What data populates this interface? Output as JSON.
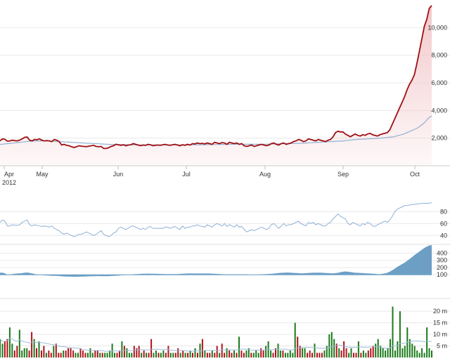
{
  "colors": {
    "price_line": "#9e0f14",
    "price_fill": "#f2c6c8",
    "moving_avg": "#8fb0d4",
    "indicator_line": "#8fb0d4",
    "oscillator_fill": "#6d9fc5",
    "volume_up": "#1b7a1b",
    "volume_down": "#b0121b",
    "volume_avg": "#9cbbd8",
    "grid": "#e9e9e9"
  },
  "chart_data": [
    {
      "type": "area",
      "x_ticks": [
        "Apr",
        "May",
        "Jun",
        "Jul",
        "Aug",
        "Sep",
        "Oct"
      ],
      "year_label": "2012",
      "y_ticks": [
        "2,000",
        "4,000",
        "6,000",
        "8,000",
        "10,000"
      ],
      "ylim": [
        0,
        11800
      ],
      "grid": true,
      "series": [
        {
          "values": [
            1800,
            1950,
            1920,
            1780,
            1800,
            1850,
            1820,
            1800,
            1860,
            1950,
            2060,
            2080,
            1850,
            1800,
            1900,
            1880,
            1950,
            1850,
            1800,
            1820,
            1800,
            1750,
            1900,
            1850,
            1750,
            1500,
            1550,
            1480,
            1450,
            1380,
            1320,
            1380,
            1450,
            1420,
            1400,
            1380,
            1420,
            1450,
            1480,
            1400,
            1380,
            1400,
            1250,
            1250,
            1300,
            1400,
            1450,
            1550,
            1520,
            1480,
            1520,
            1450,
            1500,
            1520,
            1600,
            1550,
            1500,
            1450,
            1500,
            1480,
            1550,
            1520,
            1450,
            1480,
            1500,
            1480,
            1520,
            1550,
            1500,
            1480,
            1520,
            1550,
            1500,
            1450,
            1520,
            1480,
            1550,
            1500,
            1600,
            1580,
            1650,
            1600,
            1620,
            1580,
            1650,
            1600,
            1550,
            1700,
            1650,
            1600,
            1680,
            1650,
            1550,
            1700,
            1650,
            1600,
            1650,
            1550,
            1600,
            1450,
            1400,
            1450,
            1500,
            1400,
            1450,
            1500,
            1550,
            1500,
            1450,
            1500,
            1600,
            1650,
            1550,
            1500,
            1600,
            1650,
            1550,
            1600,
            1650,
            1750,
            1800,
            1900,
            1850,
            1750,
            1800,
            1950,
            1900,
            1850,
            1800,
            1900,
            1850,
            1800,
            1750,
            1850,
            1900,
            2100,
            2400,
            2500,
            2450,
            2450,
            2300,
            2200,
            2100,
            2200,
            2300,
            2200,
            2150,
            2250,
            2200,
            2300,
            2350,
            2250,
            2200,
            2150,
            2250,
            2300,
            2350,
            2400,
            2600,
            3000,
            3400,
            3800,
            4200,
            4600,
            5000,
            5500,
            5900,
            6200,
            6600,
            7400,
            8300,
            9200,
            10100,
            10600,
            11400,
            11600
          ]
        },
        {
          "values": [
            1550,
            1560,
            1580,
            1600,
            1620,
            1640,
            1660,
            1680,
            1700,
            1720,
            1740,
            1760,
            1770,
            1780,
            1790,
            1800,
            1805,
            1800,
            1795,
            1790,
            1780,
            1770,
            1760,
            1750,
            1740,
            1730,
            1720,
            1710,
            1700,
            1690,
            1680,
            1670,
            1660,
            1650,
            1640,
            1630,
            1620,
            1610,
            1600,
            1590,
            1580,
            1570,
            1560,
            1550,
            1545,
            1540,
            1535,
            1530,
            1528,
            1525,
            1522,
            1520,
            1518,
            1515,
            1513,
            1510,
            1510,
            1510,
            1510,
            1510,
            1510,
            1510,
            1510,
            1510,
            1510,
            1510,
            1510,
            1510,
            1510,
            1510,
            1510,
            1510,
            1510,
            1510,
            1510,
            1512,
            1515,
            1518,
            1520,
            1522,
            1525,
            1528,
            1530,
            1533,
            1535,
            1538,
            1540,
            1543,
            1545,
            1548,
            1550,
            1552,
            1555,
            1555,
            1555,
            1555,
            1555,
            1555,
            1555,
            1555,
            1555,
            1555,
            1555,
            1555,
            1558,
            1560,
            1565,
            1570,
            1575,
            1580,
            1585,
            1590,
            1595,
            1600,
            1605,
            1610,
            1615,
            1620,
            1625,
            1630,
            1640,
            1650,
            1660,
            1670,
            1680,
            1690,
            1700,
            1710,
            1720,
            1730,
            1740,
            1750,
            1760,
            1770,
            1780,
            1790,
            1800,
            1820,
            1840,
            1860,
            1880,
            1900,
            1910,
            1920,
            1930,
            1940,
            1950,
            1960,
            1970,
            1980,
            1990,
            2000,
            2020,
            2040,
            2060,
            2080,
            2100,
            2150,
            2200,
            2250,
            2300,
            2380,
            2460,
            2540,
            2620,
            2700,
            2800,
            2950,
            3100,
            3300,
            3500,
            3600
          ]
        }
      ]
    },
    {
      "type": "line",
      "y_ticks": [
        "40",
        "60",
        "80"
      ],
      "ylim": [
        25,
        98
      ],
      "series": [
        {
          "values": [
            62,
            66,
            64,
            56,
            56,
            58,
            57,
            57,
            58,
            62,
            64,
            66,
            58,
            56,
            58,
            57,
            56,
            55,
            56,
            55,
            54,
            56,
            52,
            50,
            48,
            44,
            42,
            44,
            42,
            40,
            38,
            40,
            42,
            42,
            44,
            46,
            44,
            42,
            40,
            42,
            45,
            48,
            42,
            40,
            38,
            40,
            44,
            46,
            52,
            54,
            52,
            50,
            52,
            55,
            56,
            54,
            52,
            50,
            52,
            50,
            54,
            55,
            52,
            52,
            52,
            52,
            52,
            54,
            54,
            52,
            54,
            55,
            52,
            50,
            56,
            52,
            54,
            54,
            56,
            56,
            58,
            56,
            55,
            54,
            58,
            56,
            54,
            58,
            60,
            58,
            56,
            60,
            55,
            58,
            56,
            54,
            58,
            54,
            55,
            50,
            46,
            48,
            50,
            48,
            50,
            52,
            54,
            52,
            50,
            52,
            58,
            60,
            56,
            52,
            56,
            60,
            56,
            58,
            58,
            60,
            62,
            64,
            60,
            58,
            56,
            62,
            60,
            62,
            58,
            60,
            58,
            56,
            56,
            60,
            62,
            68,
            72,
            76,
            72,
            70,
            68,
            60,
            58,
            62,
            60,
            58,
            56,
            60,
            58,
            62,
            60,
            56,
            55,
            58,
            60,
            62,
            64,
            62,
            66,
            72,
            80,
            84,
            86,
            88,
            90,
            90,
            91,
            92,
            92,
            93,
            93,
            94,
            94,
            94,
            94,
            95
          ]
        }
      ]
    },
    {
      "type": "area",
      "y_ticks": [
        "100",
        "200",
        "300",
        "400"
      ],
      "ylim": [
        15,
        520
      ],
      "baseline": 100,
      "series": [
        {
          "values": [
            130,
            130,
            120,
            100,
            105,
            110,
            115,
            118,
            120,
            125,
            130,
            132,
            125,
            118,
            110,
            105,
            100,
            95,
            92,
            90,
            88,
            86,
            85,
            84,
            82,
            78,
            76,
            75,
            74,
            73,
            72,
            73,
            74,
            75,
            76,
            78,
            79,
            80,
            81,
            82,
            82,
            81,
            80,
            80,
            82,
            84,
            86,
            88,
            90,
            94,
            96,
            98,
            100,
            104,
            108,
            110,
            112,
            114,
            115,
            116,
            116,
            115,
            114,
            113,
            112,
            111,
            110,
            110,
            110,
            110,
            110,
            110,
            112,
            114,
            116,
            118,
            118,
            118,
            118,
            118,
            118,
            118,
            118,
            118,
            118,
            116,
            114,
            112,
            110,
            108,
            106,
            106,
            106,
            106,
            106,
            106,
            106,
            106,
            106,
            104,
            102,
            100,
            100,
            102,
            104,
            106,
            108,
            110,
            112,
            114,
            118,
            122,
            126,
            128,
            130,
            132,
            130,
            128,
            126,
            124,
            122,
            120,
            122,
            124,
            126,
            128,
            130,
            130,
            130,
            128,
            126,
            124,
            122,
            120,
            122,
            126,
            132,
            140,
            145,
            145,
            140,
            135,
            130,
            128,
            126,
            124,
            122,
            120,
            118,
            116,
            114,
            110,
            108,
            112,
            118,
            126,
            140,
            160,
            180,
            205,
            225,
            245,
            265,
            290,
            315,
            340,
            370,
            395,
            420,
            445,
            470,
            490,
            505,
            510
          ]
        }
      ]
    },
    {
      "type": "bar",
      "y_ticks": [
        "5 m",
        "10 m",
        "15 m",
        "20 m"
      ],
      "ylim": [
        0,
        24
      ],
      "series": [
        {
          "values": [
            8,
            6,
            7,
            8,
            13,
            6,
            3,
            5,
            12,
            3,
            4,
            4,
            3,
            11,
            8,
            4,
            7,
            3,
            5,
            2,
            3,
            2,
            5,
            6,
            2,
            2,
            3,
            3,
            4,
            4,
            3,
            2,
            2,
            4,
            3,
            2,
            2,
            4,
            2,
            3,
            3,
            2,
            2,
            2,
            2,
            3,
            6,
            2,
            2,
            3,
            7,
            5,
            4,
            2,
            2,
            5,
            4,
            5,
            2,
            3,
            2,
            2,
            8,
            2,
            3,
            2,
            2,
            3,
            2,
            5,
            2,
            2,
            2,
            4,
            2,
            3,
            2,
            2,
            3,
            2,
            4,
            2,
            6,
            8,
            3,
            2,
            2,
            3,
            2,
            5,
            2,
            6,
            2,
            4,
            3,
            2,
            3,
            2,
            9,
            3,
            2,
            3,
            4,
            2,
            2,
            3,
            2,
            4,
            3,
            5,
            7,
            3,
            2,
            4,
            6,
            3,
            3,
            2,
            2,
            3,
            2,
            15,
            9,
            5,
            4,
            4,
            2,
            3,
            2,
            6,
            2,
            2,
            2,
            3,
            5,
            10,
            11,
            8,
            6,
            4,
            3,
            7,
            4,
            2,
            4,
            2,
            2,
            7,
            2,
            3,
            2,
            3,
            4,
            5,
            6,
            8,
            5,
            4,
            3,
            4,
            8,
            22,
            3,
            7,
            20,
            4,
            5,
            13,
            8,
            6,
            5,
            3,
            2,
            4,
            2,
            13,
            4,
            3
          ]
        }
      ]
    }
  ]
}
